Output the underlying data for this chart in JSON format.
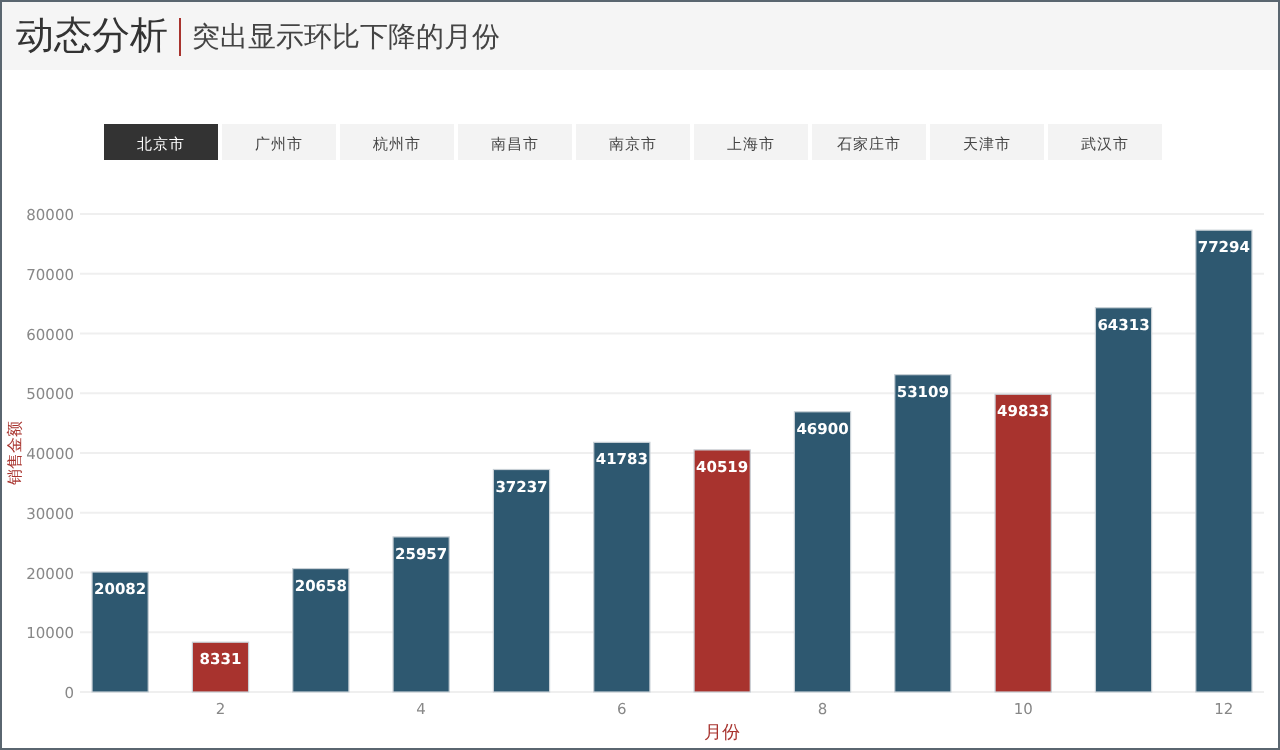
{
  "chart_data": {
    "type": "bar",
    "title": "动态分析",
    "subtitle": "突出显示环比下降的月份",
    "xlabel": "月份",
    "ylabel": "销售金额",
    "x": [
      1,
      2,
      3,
      4,
      5,
      6,
      7,
      8,
      9,
      10,
      11,
      12
    ],
    "values": [
      20082,
      8331,
      20658,
      25957,
      37237,
      41783,
      40519,
      46900,
      53109,
      49833,
      64313,
      77294
    ],
    "colors": [
      "#2e5870",
      "#a8332e",
      "#2e5870",
      "#2e5870",
      "#2e5870",
      "#2e5870",
      "#a8332e",
      "#2e5870",
      "#2e5870",
      "#a8332e",
      "#2e5870",
      "#2e5870"
    ],
    "xlim": [
      0.6,
      12.4
    ],
    "xticks": [
      2,
      4,
      6,
      8,
      10,
      12
    ],
    "ylim": [
      0,
      80000
    ],
    "yticks": [
      0,
      10000,
      20000,
      30000,
      40000,
      50000,
      60000,
      70000,
      80000
    ],
    "grid": "y",
    "data_labels": true,
    "annotations": [
      "北京市",
      "广州市",
      "杭州市",
      "南昌市",
      "南京市",
      "上海市",
      "石家庄市",
      "天津市",
      "武汉市"
    ]
  }
}
